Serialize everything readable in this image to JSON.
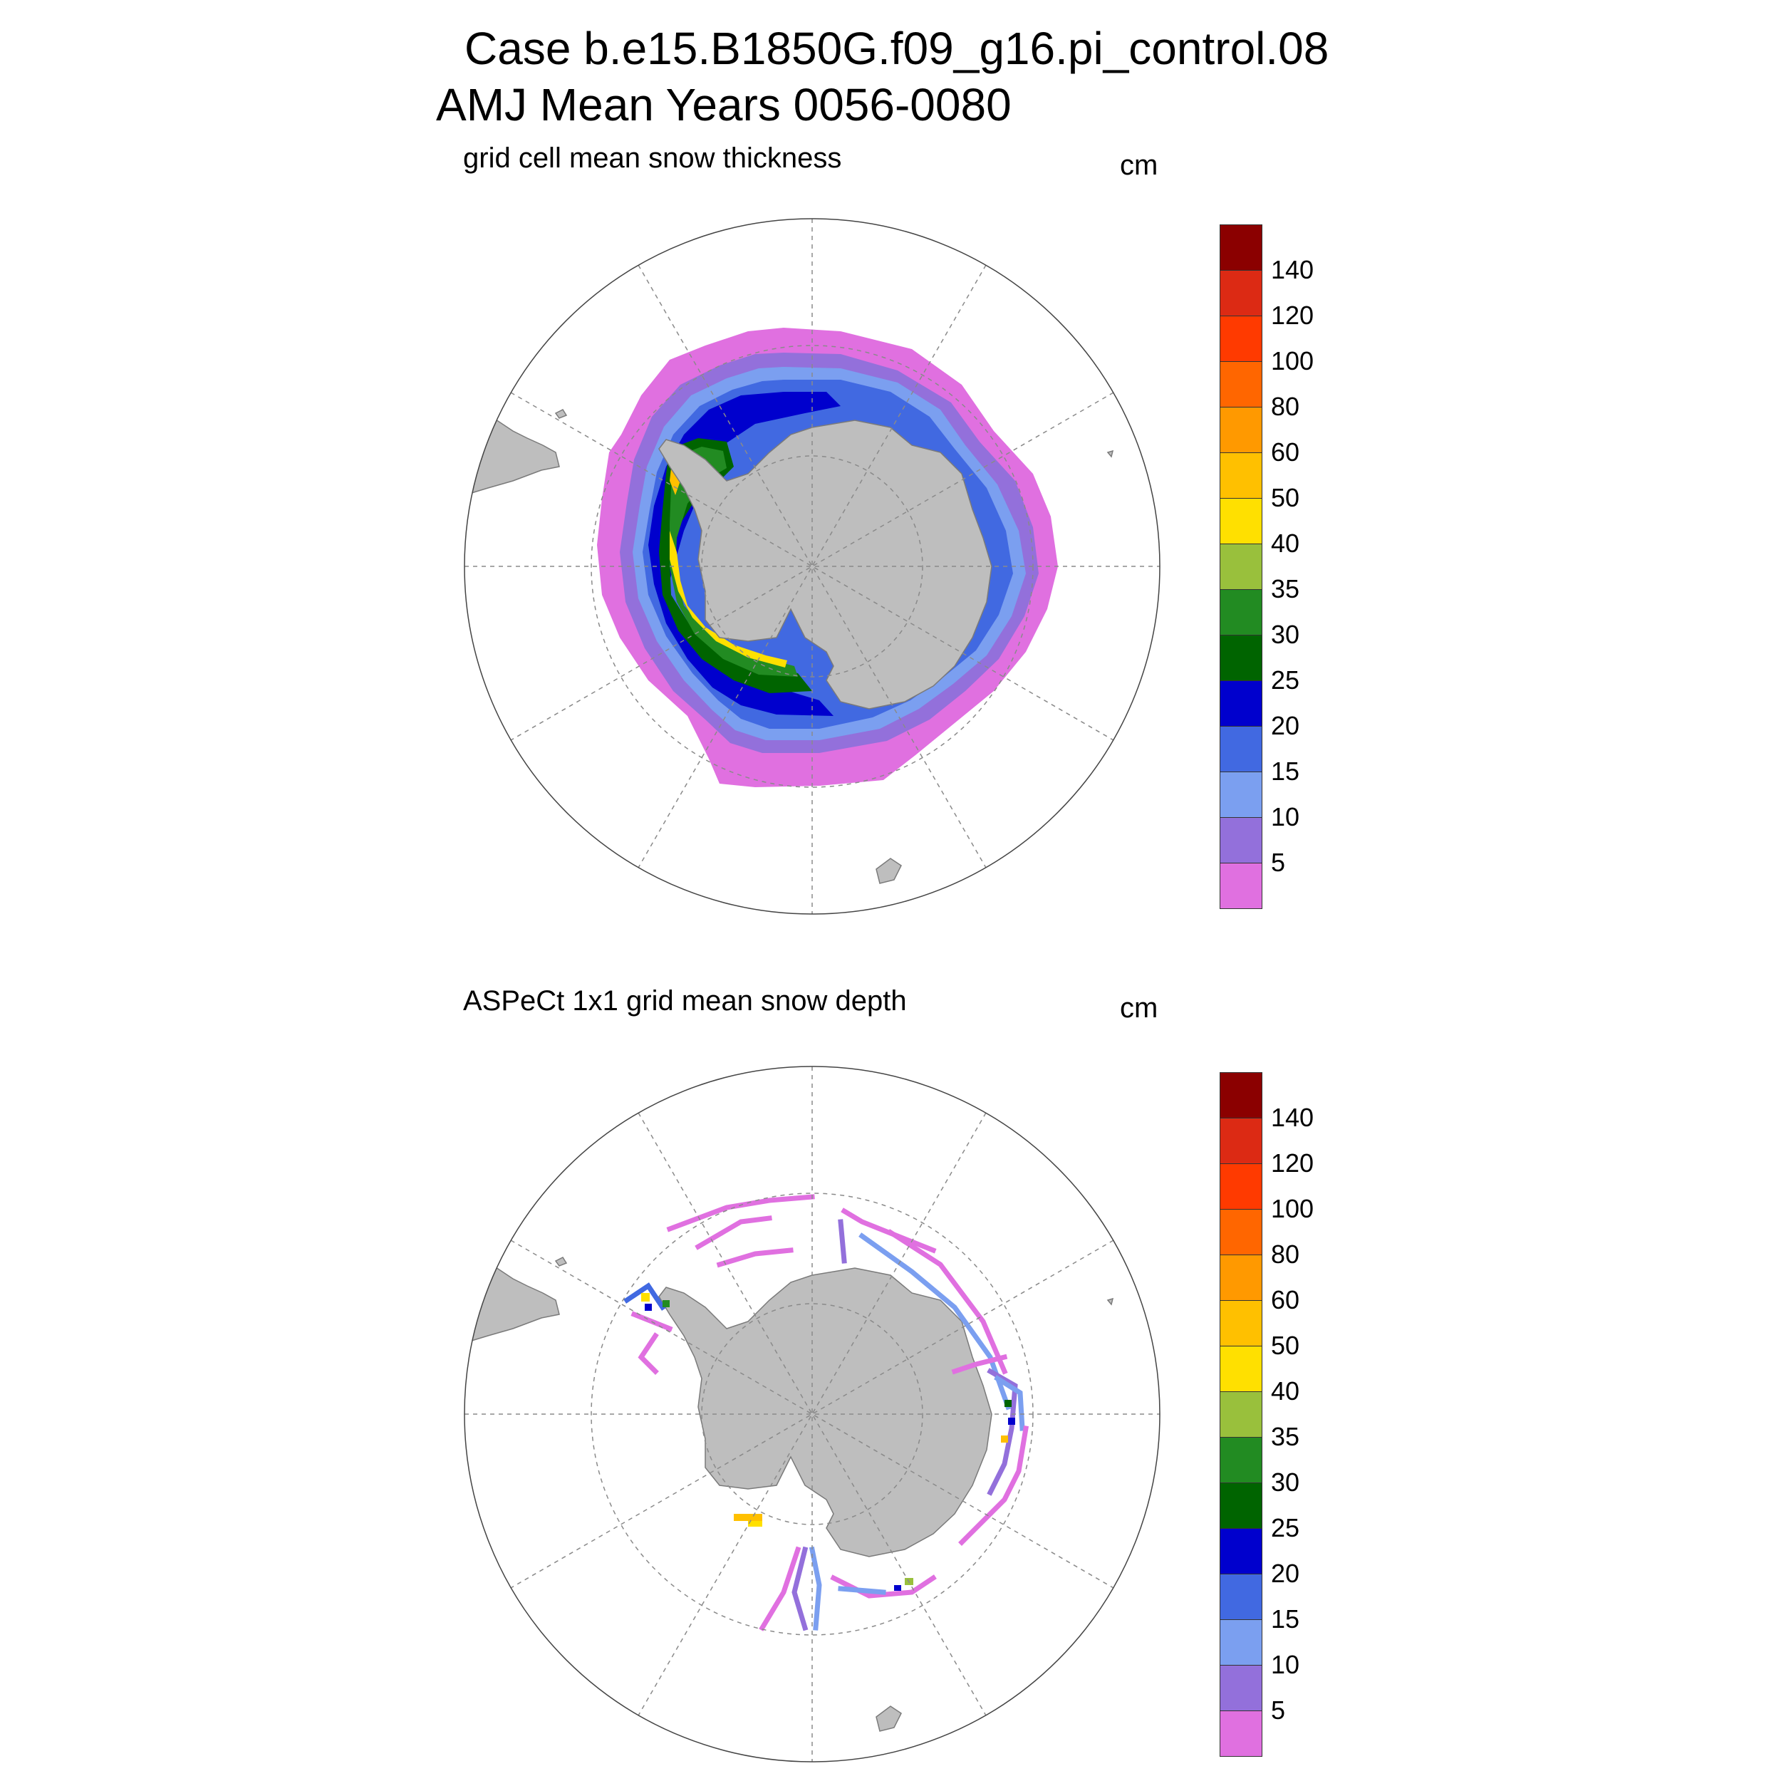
{
  "header": {
    "line1": "Case b.e15.B1850G.f09_g16.pi_control.08",
    "line2": "AMJ Mean   Years 0056-0080"
  },
  "panels": [
    {
      "title": "grid cell mean snow thickness",
      "units": "cm"
    },
    {
      "title": "ASPeCt 1x1 grid mean snow depth",
      "units": "cm"
    }
  ],
  "colorbar": {
    "labels": [
      "140",
      "120",
      "100",
      "80",
      "60",
      "50",
      "40",
      "35",
      "30",
      "25",
      "20",
      "15",
      "10",
      "5"
    ],
    "colors": [
      "#8b0000",
      "#dc2a14",
      "#ff3a00",
      "#ff6600",
      "#ff9900",
      "#ffc000",
      "#ffe000",
      "#99c03c",
      "#228b22",
      "#006400",
      "#0000cd",
      "#4169e1",
      "#7b9ff0",
      "#9370db",
      "#e070e0"
    ]
  },
  "map_colors": {
    "land": "#bebebe",
    "land_edge": "#7a7a7a",
    "grid": "#8a8a8a"
  }
}
